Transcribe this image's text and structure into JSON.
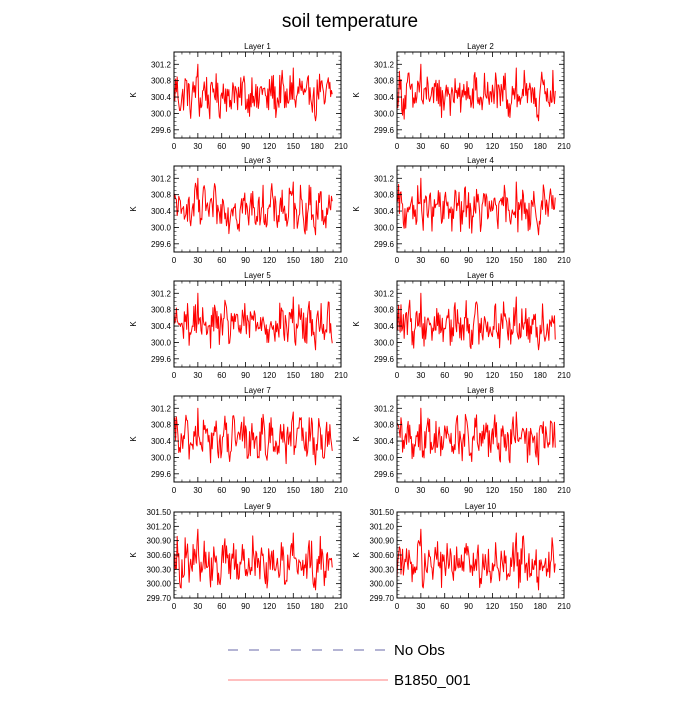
{
  "figure": {
    "title": "soil temperature"
  },
  "legend": {
    "placement": "bottom",
    "items": [
      {
        "label": "No Obs",
        "color": "#6a6aaa",
        "dash": "dashed"
      },
      {
        "label": "B1850_001",
        "color": "#ff7f7f",
        "dash": "solid"
      }
    ]
  },
  "chart_data": [
    {
      "type": "line",
      "title": "Layer 1",
      "ylabel": "K",
      "xlim": [
        0,
        210
      ],
      "ylim": [
        299.4,
        301.5
      ],
      "xticks": [
        "0",
        "30",
        "60",
        "90",
        "120",
        "150",
        "180",
        "210"
      ],
      "yticks": [
        "299.6",
        "300.0",
        "300.4",
        "300.8",
        "301.2"
      ],
      "ytick_values": [
        299.6,
        300.0,
        300.4,
        300.8,
        301.2
      ],
      "series": [
        {
          "color": "#ff0000",
          "x_start": 0,
          "x_step": 1,
          "values": []
        }
      ]
    },
    {
      "type": "line",
      "title": "Layer 2",
      "ylabel": "K",
      "xlim": [
        0,
        210
      ],
      "ylim": [
        299.4,
        301.5
      ],
      "xticks": [
        "0",
        "30",
        "60",
        "90",
        "120",
        "150",
        "180",
        "210"
      ],
      "yticks": [
        "299.6",
        "300.0",
        "300.4",
        "300.8",
        "301.2"
      ],
      "ytick_values": [
        299.6,
        300.0,
        300.4,
        300.8,
        301.2
      ],
      "series": [
        {
          "color": "#ff0000",
          "x_start": 0,
          "x_step": 1,
          "values": []
        }
      ]
    },
    {
      "type": "line",
      "title": "Layer 3",
      "ylabel": "K",
      "xlim": [
        0,
        210
      ],
      "ylim": [
        299.4,
        301.5
      ],
      "xticks": [
        "0",
        "30",
        "60",
        "90",
        "120",
        "150",
        "180",
        "210"
      ],
      "yticks": [
        "299.6",
        "300.0",
        "300.4",
        "300.8",
        "301.2"
      ],
      "ytick_values": [
        299.6,
        300.0,
        300.4,
        300.8,
        301.2
      ],
      "series": [
        {
          "color": "#ff0000",
          "x_start": 0,
          "x_step": 1,
          "values": []
        }
      ]
    },
    {
      "type": "line",
      "title": "Layer 4",
      "ylabel": "K",
      "xlim": [
        0,
        210
      ],
      "ylim": [
        299.4,
        301.5
      ],
      "xticks": [
        "0",
        "30",
        "60",
        "90",
        "120",
        "150",
        "180",
        "210"
      ],
      "yticks": [
        "299.6",
        "300.0",
        "300.4",
        "300.8",
        "301.2"
      ],
      "ytick_values": [
        299.6,
        300.0,
        300.4,
        300.8,
        301.2
      ],
      "series": [
        {
          "color": "#ff0000",
          "x_start": 0,
          "x_step": 1,
          "values": []
        }
      ]
    },
    {
      "type": "line",
      "title": "Layer 5",
      "ylabel": "K",
      "xlim": [
        0,
        210
      ],
      "ylim": [
        299.4,
        301.5
      ],
      "xticks": [
        "0",
        "30",
        "60",
        "90",
        "120",
        "150",
        "180",
        "210"
      ],
      "yticks": [
        "299.6",
        "300.0",
        "300.4",
        "300.8",
        "301.2"
      ],
      "ytick_values": [
        299.6,
        300.0,
        300.4,
        300.8,
        301.2
      ],
      "series": [
        {
          "color": "#ff0000",
          "x_start": 0,
          "x_step": 1,
          "values": []
        }
      ]
    },
    {
      "type": "line",
      "title": "Layer 6",
      "ylabel": "K",
      "xlim": [
        0,
        210
      ],
      "ylim": [
        299.4,
        301.5
      ],
      "xticks": [
        "0",
        "30",
        "60",
        "90",
        "120",
        "150",
        "180",
        "210"
      ],
      "yticks": [
        "299.6",
        "300.0",
        "300.4",
        "300.8",
        "301.2"
      ],
      "ytick_values": [
        299.6,
        300.0,
        300.4,
        300.8,
        301.2
      ],
      "series": [
        {
          "color": "#ff0000",
          "x_start": 0,
          "x_step": 1,
          "values": []
        }
      ]
    },
    {
      "type": "line",
      "title": "Layer 7",
      "ylabel": "K",
      "xlim": [
        0,
        210
      ],
      "ylim": [
        299.4,
        301.5
      ],
      "xticks": [
        "0",
        "30",
        "60",
        "90",
        "120",
        "150",
        "180",
        "210"
      ],
      "yticks": [
        "299.6",
        "300.0",
        "300.4",
        "300.8",
        "301.2"
      ],
      "ytick_values": [
        299.6,
        300.0,
        300.4,
        300.8,
        301.2
      ],
      "series": [
        {
          "color": "#ff0000",
          "x_start": 0,
          "x_step": 1,
          "values": []
        }
      ]
    },
    {
      "type": "line",
      "title": "Layer 8",
      "ylabel": "K",
      "xlim": [
        0,
        210
      ],
      "ylim": [
        299.4,
        301.5
      ],
      "xticks": [
        "0",
        "30",
        "60",
        "90",
        "120",
        "150",
        "180",
        "210"
      ],
      "yticks": [
        "299.6",
        "300.0",
        "300.4",
        "300.8",
        "301.2"
      ],
      "ytick_values": [
        299.6,
        300.0,
        300.4,
        300.8,
        301.2
      ],
      "series": [
        {
          "color": "#ff0000",
          "x_start": 0,
          "x_step": 1,
          "values": []
        }
      ]
    },
    {
      "type": "line",
      "title": "Layer 9",
      "ylabel": "K",
      "xlim": [
        0,
        210
      ],
      "ylim": [
        299.7,
        301.5
      ],
      "xticks": [
        "0",
        "30",
        "60",
        "90",
        "120",
        "150",
        "180",
        "210"
      ],
      "yticks": [
        "299.70",
        "300.00",
        "300.30",
        "300.60",
        "300.90",
        "301.20",
        "301.50"
      ],
      "ytick_values": [
        299.7,
        300.0,
        300.3,
        300.6,
        300.9,
        301.2,
        301.5
      ],
      "series": [
        {
          "color": "#ff0000",
          "x_start": 0,
          "x_step": 1,
          "values": []
        }
      ]
    },
    {
      "type": "line",
      "title": "Layer 10",
      "ylabel": "K",
      "xlim": [
        0,
        210
      ],
      "ylim": [
        299.7,
        301.5
      ],
      "xticks": [
        "0",
        "30",
        "60",
        "90",
        "120",
        "150",
        "180",
        "210"
      ],
      "yticks": [
        "299.70",
        "300.00",
        "300.30",
        "300.60",
        "300.90",
        "301.20",
        "301.50"
      ],
      "ytick_values": [
        299.7,
        300.0,
        300.3,
        300.6,
        300.9,
        301.2,
        301.5
      ],
      "series": [
        {
          "color": "#ff0000",
          "x_start": 0,
          "x_step": 1,
          "values": []
        }
      ]
    }
  ]
}
